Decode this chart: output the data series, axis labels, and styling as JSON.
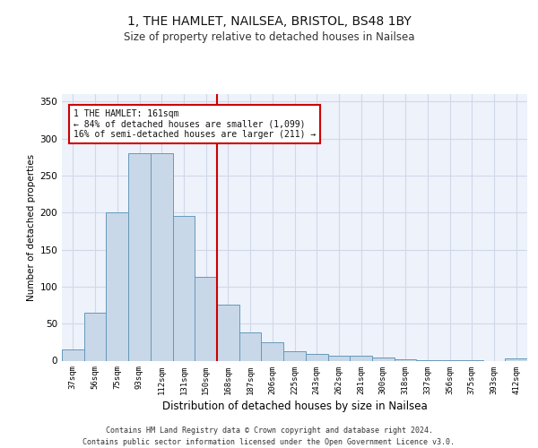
{
  "title_line1": "1, THE HAMLET, NAILSEA, BRISTOL, BS48 1BY",
  "title_line2": "Size of property relative to detached houses in Nailsea",
  "xlabel": "Distribution of detached houses by size in Nailsea",
  "ylabel": "Number of detached properties",
  "footer": "Contains HM Land Registry data © Crown copyright and database right 2024.\nContains public sector information licensed under the Open Government Licence v3.0.",
  "categories": [
    "37sqm",
    "56sqm",
    "75sqm",
    "93sqm",
    "112sqm",
    "131sqm",
    "150sqm",
    "168sqm",
    "187sqm",
    "206sqm",
    "225sqm",
    "243sqm",
    "262sqm",
    "281sqm",
    "300sqm",
    "318sqm",
    "337sqm",
    "356sqm",
    "375sqm",
    "393sqm",
    "412sqm"
  ],
  "values": [
    15,
    65,
    200,
    280,
    280,
    195,
    113,
    76,
    38,
    25,
    13,
    9,
    7,
    7,
    4,
    2,
    1,
    1,
    1,
    0,
    3
  ],
  "bar_color": "#c8d8e8",
  "bar_edge_color": "#6699bb",
  "grid_color": "#d0d8e8",
  "background_color": "#eef2fa",
  "vline_x": 6.5,
  "vline_color": "#cc0000",
  "annotation_text": "1 THE HAMLET: 161sqm\n← 84% of detached houses are smaller (1,099)\n16% of semi-detached houses are larger (211) →",
  "annotation_box_color": "#ffffff",
  "annotation_border_color": "#cc0000",
  "ylim": [
    0,
    360
  ],
  "yticks": [
    0,
    50,
    100,
    150,
    200,
    250,
    300,
    350
  ],
  "title_fontsize": 10,
  "subtitle_fontsize": 8.5,
  "footer_fontsize": 6,
  "ylabel_fontsize": 7.5,
  "xlabel_fontsize": 8.5,
  "xtick_fontsize": 6.5,
  "ytick_fontsize": 7.5,
  "ann_fontsize": 7
}
